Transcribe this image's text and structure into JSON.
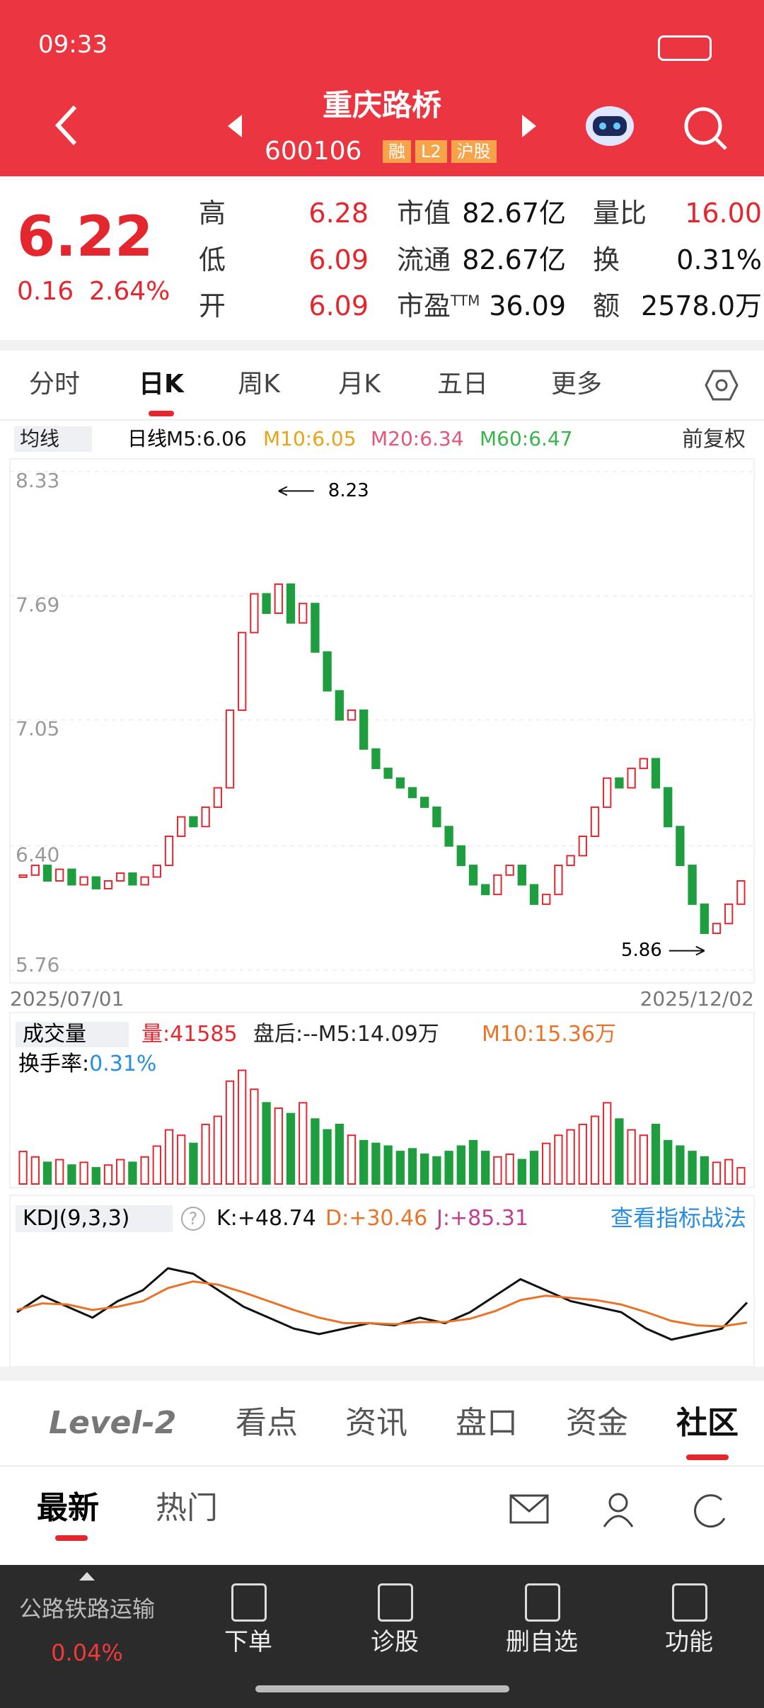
{
  "status_bar": {
    "time": "09:33"
  },
  "header": {
    "title": "重庆路桥",
    "code": "600106",
    "badges": [
      "融",
      "L2",
      "沪股"
    ]
  },
  "quote": {
    "price": "6.22",
    "change": "0.16",
    "change_pct": "2.64%",
    "pe_suffix": "TTM",
    "rows": [
      [
        [
          "高",
          "6.28"
        ],
        [
          "市值",
          "82.67亿"
        ],
        [
          "量比",
          "16.00"
        ]
      ],
      [
        [
          "低",
          "6.09"
        ],
        [
          "流通",
          "82.67亿"
        ],
        [
          "换",
          "0.31%"
        ]
      ],
      [
        [
          "开",
          "6.09"
        ],
        [
          "市盈",
          "36.09"
        ],
        [
          "额",
          "2578.0万"
        ]
      ]
    ]
  },
  "tabs": [
    "分时",
    "日K",
    "周K",
    "月K",
    "五日",
    "更多"
  ],
  "indicator": {
    "selector": "均线",
    "period": "日线",
    "ma": [
      "M5:6.06",
      "M10:6.05",
      "M20:6.34",
      "M60:6.47"
    ],
    "adjust": "前复权"
  },
  "kline": {
    "ylim": [
      5.76,
      8.33
    ],
    "yticks": [
      8.33,
      7.69,
      7.05,
      {
        "value": 6.4,
        "label": "6.40"
      },
      5.76
    ],
    "high_label": 8.23,
    "low_label": 5.86,
    "start_date": "2025/07/01",
    "end_date": "2025/12/02",
    "close": [
      6.25,
      6.3,
      6.22,
      6.28,
      6.2,
      6.24,
      6.18,
      6.22,
      6.26,
      6.2,
      6.24,
      6.3,
      6.45,
      6.55,
      6.5,
      6.6,
      6.7,
      7.1,
      7.5,
      7.7,
      7.6,
      7.75,
      7.55,
      7.65,
      7.4,
      7.2,
      7.05,
      7.1,
      6.9,
      6.8,
      6.75,
      6.7,
      6.65,
      6.6,
      6.5,
      6.4,
      6.3,
      6.2,
      6.15,
      6.25,
      6.3,
      6.2,
      6.1,
      6.15,
      6.3,
      6.35,
      6.45,
      6.6,
      6.75,
      6.7,
      6.8,
      6.85,
      6.7,
      6.5,
      6.3,
      6.1,
      5.95,
      6.0,
      6.1,
      6.22
    ]
  },
  "volume": {
    "selector": "成交量",
    "items": [
      "量:41585",
      "盘后:--M5:14.09万",
      "M10:15.36万"
    ],
    "turnover_label": "换手率:",
    "turnover": "0.31%",
    "ylim": [
      0,
      45
    ],
    "values": [
      12,
      10,
      8,
      9,
      7,
      8,
      6,
      7,
      9,
      8,
      10,
      14,
      20,
      18,
      15,
      22,
      25,
      38,
      42,
      35,
      30,
      28,
      26,
      30,
      24,
      20,
      22,
      18,
      16,
      15,
      14,
      12,
      13,
      11,
      10,
      12,
      14,
      16,
      12,
      10,
      11,
      9,
      12,
      15,
      18,
      20,
      22,
      25,
      30,
      24,
      20,
      18,
      22,
      16,
      14,
      12,
      10,
      8,
      9,
      6
    ]
  },
  "kdj": {
    "selector": "KDJ(9,3,3)",
    "help": "?",
    "k": "K:+48.74",
    "d": "D:+30.46",
    "j": "J:+85.31",
    "link": "查看指标战法",
    "ylim": [
      0,
      100
    ],
    "k_values": [
      40,
      55,
      45,
      35,
      50,
      60,
      80,
      75,
      60,
      45,
      35,
      25,
      20,
      25,
      30,
      28,
      35,
      30,
      40,
      55,
      70,
      60,
      50,
      45,
      40,
      25,
      15,
      20,
      25,
      48.74
    ],
    "d_values": [
      42,
      48,
      47,
      42,
      45,
      50,
      62,
      68,
      65,
      58,
      50,
      42,
      35,
      30,
      30,
      29,
      31,
      31,
      34,
      41,
      51,
      55,
      53,
      51,
      47,
      40,
      32,
      28,
      27,
      30.46
    ]
  },
  "section_tabs": [
    "Level-2",
    "看点",
    "资讯",
    "盘口",
    "资金",
    "社区"
  ],
  "feed_tabs": [
    "最新",
    "热门"
  ],
  "bottom": {
    "sector": "公路铁路运输",
    "sector_change": "0.04%",
    "actions": [
      "下单",
      "诊股",
      "删自选",
      "功能"
    ]
  }
}
